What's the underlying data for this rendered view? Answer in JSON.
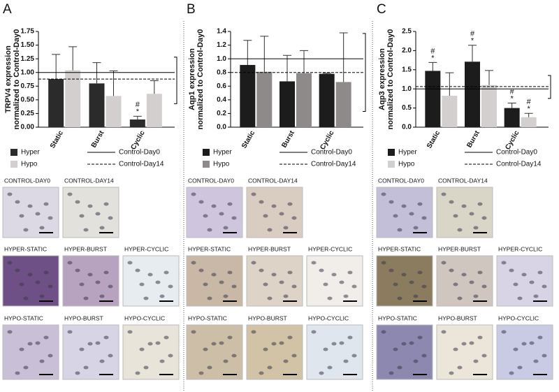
{
  "chart_data": [
    {
      "type": "bar",
      "panel": "A",
      "y_label": [
        "TRPV4 expression",
        "normalized to Control-Day0"
      ],
      "categories": [
        "Static",
        "Burst",
        "Cyclic"
      ],
      "series": [
        {
          "name": "Hyper",
          "color": "#2b2b2b",
          "values": [
            0.88,
            0.8,
            0.14
          ],
          "errors": [
            0.45,
            0.38,
            0.06
          ]
        },
        {
          "name": "Hypo",
          "color": "#d3cfcf",
          "values": [
            1.04,
            0.57,
            0.61
          ],
          "errors": [
            0.43,
            0.46,
            0.24
          ]
        }
      ],
      "reference_lines": [
        {
          "name": "Control-Day0",
          "value": 1.0,
          "dashed": false
        },
        {
          "name": "Control-Day14",
          "value": 0.88,
          "dashed": true,
          "range": [
            0.43,
            1.28
          ]
        }
      ],
      "annotations": [
        {
          "series": 0,
          "category": 2,
          "marks": [
            "#",
            "*"
          ]
        }
      ],
      "ylim": [
        0,
        1.75
      ],
      "yticks": [
        {
          "value": 0,
          "label": "0.00"
        },
        {
          "value": 0.25,
          "label": "0.25"
        },
        {
          "value": 0.5,
          "label": "0.50"
        },
        {
          "value": 0.75,
          "label": "0.75"
        },
        {
          "value": 1,
          "label": "1.00"
        },
        {
          "value": 1.25,
          "label": "1.25"
        },
        {
          "value": 1.5,
          "label": "1.50"
        },
        {
          "value": 1.75,
          "label": "1.75"
        }
      ]
    },
    {
      "type": "bar",
      "panel": "B",
      "y_label": [
        "Aqp1 expression",
        "normalized to Control-Day0"
      ],
      "categories": [
        "Static",
        "Burst",
        "Cyclic"
      ],
      "series": [
        {
          "name": "Hyper",
          "color": "#1c1c1c",
          "values": [
            0.91,
            0.67,
            0.78
          ],
          "errors": [
            0.36,
            0.38,
            0.01
          ]
        },
        {
          "name": "Hypo",
          "color": "#8f8a8a",
          "values": [
            0.81,
            0.79,
            0.66
          ],
          "errors": [
            0.52,
            0.33,
            0.72
          ]
        }
      ],
      "reference_lines": [
        {
          "name": "Control-Day0",
          "value": 1.0,
          "dashed": false
        },
        {
          "name": "Control-Day14",
          "value": 0.8,
          "dashed": true,
          "range": [
            0.23,
            1.37
          ]
        }
      ],
      "annotations": [],
      "ylim": [
        0,
        1.4
      ],
      "yticks": [
        {
          "value": 0,
          "label": "0.0"
        },
        0.2,
        0.4,
        0.6,
        0.8,
        {
          "value": 1,
          "label": "1.0"
        },
        1.2,
        1.4
      ]
    },
    {
      "type": "bar",
      "panel": "C",
      "y_label": [
        "Aqp3 expression",
        "normalized to Control-Day0"
      ],
      "categories": [
        "Static",
        "Burst",
        "Cyclic"
      ],
      "series": [
        {
          "name": "Hyper",
          "color": "#1c1c1c",
          "values": [
            1.47,
            1.71,
            0.5
          ],
          "errors": [
            0.22,
            0.43,
            0.13
          ]
        },
        {
          "name": "Hypo",
          "color": "#d3cfcf",
          "values": [
            0.82,
            1.1,
            0.26
          ],
          "errors": [
            0.6,
            0.38,
            0.1
          ]
        }
      ],
      "reference_lines": [
        {
          "name": "Control-Day0",
          "value": 1.0,
          "dashed": false
        },
        {
          "name": "Control-Day14",
          "value": 1.06,
          "dashed": true,
          "range": [
            0.75,
            1.35
          ]
        }
      ],
      "annotations": [
        {
          "series": 0,
          "category": 0,
          "marks": [
            "#",
            "*"
          ]
        },
        {
          "series": 0,
          "category": 1,
          "marks": [
            "#",
            "*"
          ]
        },
        {
          "series": 0,
          "category": 2,
          "marks": [
            "#",
            "*"
          ]
        },
        {
          "series": 1,
          "category": 2,
          "marks": [
            "#",
            "*"
          ]
        }
      ],
      "ylim": [
        0,
        2.5
      ],
      "yticks": [
        {
          "value": 0,
          "label": "0.0"
        },
        0.5,
        {
          "value": 1,
          "label": "1.0"
        },
        1.5,
        {
          "value": 2,
          "label": "2.0"
        },
        2.5
      ]
    }
  ],
  "panels": [
    {
      "images": [
        [
          "CONTROL-DAY0",
          "CONTROL-DAY14"
        ],
        [
          "HYPER-STATIC",
          "HYPER-BURST",
          "HYPER-CYCLIC"
        ],
        [
          "HYPO-STATIC",
          "HYPO-BURST",
          "HYPO-CYCLIC"
        ]
      ]
    },
    {
      "images": [
        [
          "CONTROL-DAY0",
          "CONTROL-DAY14"
        ],
        [
          "HYPER-STATIC",
          "HYPER-BURST",
          "HYPER-CYCLIC"
        ],
        [
          "HYPO-STATIC",
          "HYPO-BURST",
          "HYPO-CYCLIC"
        ]
      ]
    },
    {
      "images": [
        [
          "CONTROL-DAY0",
          "CONTROL-DAY14"
        ],
        [
          "HYPER-STATIC",
          "HYPER-BURST",
          "HYPER-CYCLIC"
        ],
        [
          "HYPO-STATIC",
          "HYPO-BURST",
          "HYPO-CYCLIC"
        ]
      ]
    }
  ]
}
